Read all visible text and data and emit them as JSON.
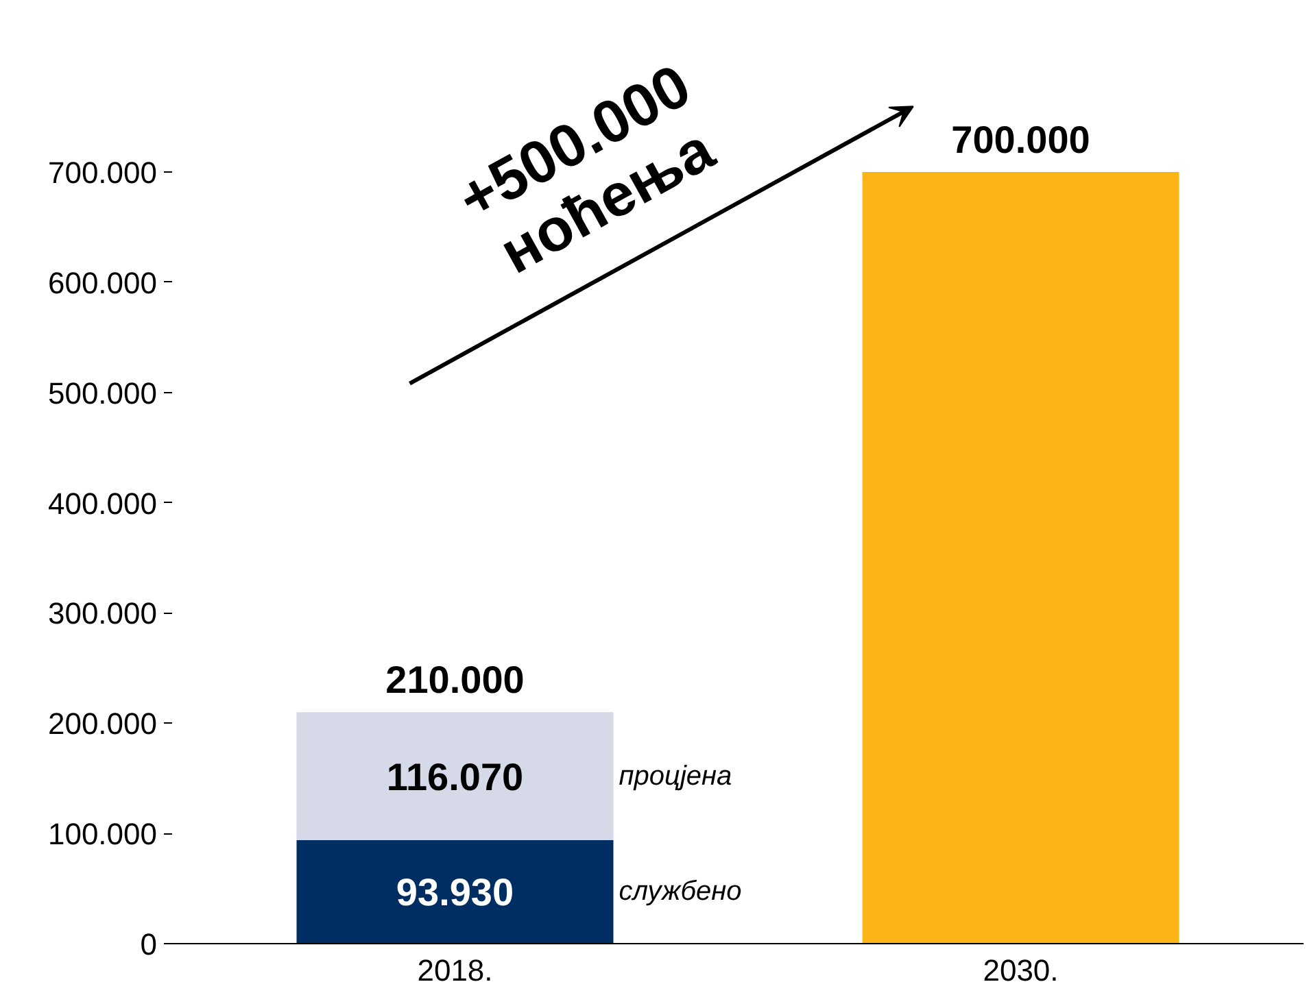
{
  "chart_data": {
    "type": "bar",
    "stacked": true,
    "categories": [
      "2018.",
      "2030."
    ],
    "series": [
      {
        "name": "службено",
        "color": "#002d62",
        "values": [
          93930,
          null
        ],
        "value_labels": [
          "93.930",
          null
        ]
      },
      {
        "name": "процјена",
        "color": "#d5d9e8",
        "values": [
          116070,
          null
        ],
        "value_labels": [
          "116.070",
          null
        ]
      },
      {
        "color": "#fbb516",
        "values": [
          null,
          700000
        ]
      }
    ],
    "totals": [
      "210.000",
      "700.000"
    ],
    "ylim": [
      0,
      700000
    ],
    "yticks": [
      {
        "value": 0,
        "label": "0"
      },
      {
        "value": 100000,
        "label": "100.000"
      },
      {
        "value": 200000,
        "label": "200.000"
      },
      {
        "value": 300000,
        "label": "300.000"
      },
      {
        "value": 400000,
        "label": "400.000"
      },
      {
        "value": 500000,
        "label": "500.000"
      },
      {
        "value": 600000,
        "label": "600.000"
      },
      {
        "value": 700000,
        "label": "700.000"
      }
    ],
    "annotations": [
      "+500.000\nноћења"
    ],
    "grid": false
  }
}
